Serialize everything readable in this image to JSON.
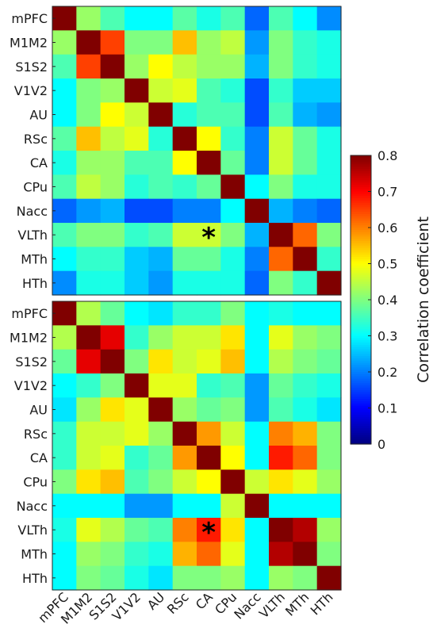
{
  "chart_data": [
    {
      "type": "heatmap",
      "name": "top",
      "labels": [
        "mPFC",
        "M1M2",
        "S1S2",
        "V1V2",
        "AU",
        "RSc",
        "CA",
        "CPu",
        "Nacc",
        "VLTh",
        "MTh",
        "HTh"
      ],
      "values": [
        [
          1.0,
          0.42,
          0.36,
          0.3,
          0.3,
          0.37,
          0.32,
          0.36,
          0.18,
          0.36,
          0.3,
          0.21
        ],
        [
          0.42,
          1.0,
          0.65,
          0.4,
          0.4,
          0.55,
          0.42,
          0.45,
          0.22,
          0.4,
          0.34,
          0.32
        ],
        [
          0.36,
          0.65,
          1.0,
          0.42,
          0.5,
          0.45,
          0.42,
          0.42,
          0.24,
          0.4,
          0.34,
          0.32
        ],
        [
          0.3,
          0.4,
          0.42,
          1.0,
          0.46,
          0.48,
          0.36,
          0.33,
          0.16,
          0.34,
          0.26,
          0.26
        ],
        [
          0.3,
          0.4,
          0.5,
          0.46,
          1.0,
          0.33,
          0.36,
          0.36,
          0.16,
          0.36,
          0.24,
          0.22
        ],
        [
          0.37,
          0.55,
          0.45,
          0.48,
          0.33,
          1.0,
          0.5,
          0.34,
          0.2,
          0.46,
          0.38,
          0.32
        ],
        [
          0.32,
          0.42,
          0.42,
          0.36,
          0.36,
          0.5,
          1.0,
          0.38,
          0.2,
          0.46,
          0.38,
          0.32
        ],
        [
          0.36,
          0.45,
          0.42,
          0.33,
          0.36,
          0.34,
          0.38,
          1.0,
          0.3,
          0.4,
          0.32,
          0.32
        ],
        [
          0.18,
          0.22,
          0.24,
          0.16,
          0.16,
          0.2,
          0.2,
          0.3,
          1.0,
          0.24,
          0.2,
          0.18
        ],
        [
          0.36,
          0.4,
          0.4,
          0.34,
          0.36,
          0.46,
          0.46,
          0.4,
          0.24,
          1.0,
          0.62,
          0.4
        ],
        [
          0.3,
          0.34,
          0.34,
          0.26,
          0.24,
          0.38,
          0.38,
          0.32,
          0.2,
          0.62,
          1.0,
          0.34
        ],
        [
          0.21,
          0.32,
          0.32,
          0.26,
          0.22,
          0.32,
          0.32,
          0.32,
          0.18,
          0.4,
          0.34,
          1.0
        ]
      ],
      "marker": {
        "symbol": "*",
        "row": "VLTh",
        "col": "CA"
      }
    },
    {
      "type": "heatmap",
      "name": "bottom",
      "labels": [
        "mPFC",
        "M1M2",
        "S1S2",
        "V1V2",
        "AU",
        "RSc",
        "CA",
        "CPu",
        "Nacc",
        "VLTh",
        "MTh",
        "HTh"
      ],
      "values": [
        [
          1.0,
          0.44,
          0.38,
          0.3,
          0.28,
          0.34,
          0.34,
          0.4,
          0.3,
          0.32,
          0.3,
          0.3
        ],
        [
          0.44,
          1.0,
          0.72,
          0.34,
          0.42,
          0.46,
          0.46,
          0.52,
          0.3,
          0.48,
          0.42,
          0.4
        ],
        [
          0.38,
          0.72,
          1.0,
          0.4,
          0.52,
          0.46,
          0.48,
          0.55,
          0.3,
          0.44,
          0.4,
          0.38
        ],
        [
          0.3,
          0.34,
          0.4,
          1.0,
          0.48,
          0.48,
          0.34,
          0.36,
          0.22,
          0.38,
          0.34,
          0.32
        ],
        [
          0.28,
          0.42,
          0.52,
          0.48,
          1.0,
          0.42,
          0.38,
          0.4,
          0.22,
          0.36,
          0.32,
          0.28
        ],
        [
          0.34,
          0.46,
          0.46,
          0.48,
          0.42,
          1.0,
          0.58,
          0.46,
          0.3,
          0.6,
          0.56,
          0.4
        ],
        [
          0.34,
          0.46,
          0.48,
          0.34,
          0.38,
          0.58,
          1.0,
          0.5,
          0.3,
          0.68,
          0.62,
          0.4
        ],
        [
          0.4,
          0.52,
          0.55,
          0.36,
          0.4,
          0.46,
          0.5,
          1.0,
          0.46,
          0.52,
          0.48,
          0.42
        ],
        [
          0.3,
          0.3,
          0.3,
          0.22,
          0.22,
          0.3,
          0.3,
          0.46,
          1.0,
          0.3,
          0.3,
          0.3
        ],
        [
          0.32,
          0.48,
          0.44,
          0.38,
          0.36,
          0.6,
          0.68,
          0.52,
          0.3,
          1.0,
          0.76,
          0.42
        ],
        [
          0.3,
          0.42,
          0.4,
          0.34,
          0.32,
          0.56,
          0.62,
          0.48,
          0.3,
          0.76,
          1.0,
          0.4
        ],
        [
          0.3,
          0.4,
          0.38,
          0.32,
          0.28,
          0.4,
          0.4,
          0.42,
          0.3,
          0.42,
          0.4,
          1.0
        ]
      ],
      "marker": {
        "symbol": "*",
        "row": "VLTh",
        "col": "CA"
      }
    }
  ],
  "colorbar": {
    "label": "Correlation coefficient",
    "colormap": "jet",
    "min": 0,
    "max": 0.8,
    "ticks": [
      "0",
      "0.1",
      "0.2",
      "0.3",
      "0.4",
      "0.5",
      "0.6",
      "0.7",
      "0.8"
    ]
  }
}
